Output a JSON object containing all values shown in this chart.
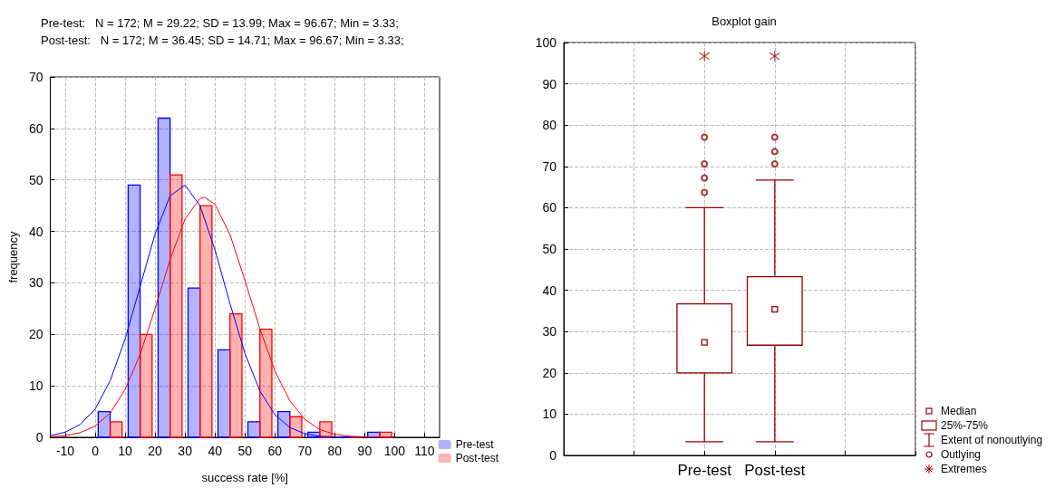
{
  "chart_data": [
    {
      "type": "histogram",
      "title": "Pre-test:   N = 172; M = 29.22; SD = 13.99; Max = 96.67; Min = 3.33;",
      "subtitle": "Post-test:   N = 172; M = 36.45; SD = 14.71; Max = 96.67; Min = 3.33;",
      "xlabel": "success rate [%]",
      "ylabel": "frequency",
      "bins": [
        0,
        10,
        20,
        30,
        40,
        50,
        60,
        70,
        80,
        90,
        100
      ],
      "series": [
        {
          "name": "Pre-test",
          "color": "#0000ff",
          "values": [
            5,
            49,
            62,
            29,
            17,
            3,
            5,
            1,
            0,
            1
          ]
        },
        {
          "name": "Post-test",
          "color": "#ff0000",
          "values": [
            3,
            20,
            51,
            45,
            24,
            21,
            4,
            3,
            0,
            1
          ]
        },
        {
          "type": "line",
          "color": "#0000ff",
          "x": [
            -15,
            -10,
            -5,
            0,
            5,
            10,
            15,
            20,
            25,
            30,
            35,
            40,
            45,
            50,
            55,
            60,
            65,
            70,
            75,
            80,
            90,
            100
          ],
          "values": [
            0.3,
            1,
            2.5,
            5.5,
            11,
            19.1,
            29.3,
            39.5,
            46.9,
            49,
            45,
            36.4,
            26,
            16.3,
            9,
            4.4,
            1.9,
            0.7,
            0.2,
            0.1,
            0,
            0
          ]
        },
        {
          "type": "line",
          "color": "#ff0000",
          "x": [
            -15,
            -10,
            -5,
            0,
            5,
            10,
            15,
            20,
            25,
            30,
            35,
            36.5,
            40,
            45,
            50,
            55,
            60,
            65,
            70,
            75,
            80,
            85,
            90,
            100
          ],
          "values": [
            0.1,
            0.3,
            0.9,
            2.2,
            4.7,
            9.3,
            16.1,
            25,
            34.5,
            42.4,
            46.4,
            46.6,
            45.3,
            39.4,
            30.5,
            21.1,
            12.9,
            7.1,
            3.5,
            1.5,
            0.6,
            0.2,
            0.1,
            0
          ]
        }
      ],
      "xlim": [
        -15,
        115
      ],
      "xticks": [
        -10,
        0,
        10,
        20,
        30,
        40,
        50,
        60,
        70,
        80,
        90,
        100,
        110
      ],
      "ylim": [
        0,
        70
      ],
      "yticks": [
        0,
        10,
        20,
        30,
        40,
        50,
        60,
        70
      ],
      "grid": true,
      "legend": "bottom right"
    },
    {
      "type": "box",
      "title": "Boxplot gain",
      "categories": [
        "Pre-test",
        "Post-test"
      ],
      "series": [
        {
          "color": "#990000",
          "boxes": [
            {
              "low": 3.33,
              "q1": 20,
              "median": 27.4,
              "q3": 36.7,
              "high": 60,
              "outliers": [
                63.7,
                67.2,
                70.6,
                77.1
              ]
            },
            {
              "low": 3.33,
              "q1": 26.7,
              "median": 35.4,
              "q3": 43.3,
              "high": 66.7,
              "outliers": [
                70.6,
                73.6,
                77.1
              ]
            }
          ]
        },
        {
          "type": "scatter",
          "marker": "cross",
          "color": "#990000",
          "x": [
            "Pre-test",
            "Post-test"
          ],
          "values": [
            96.7,
            96.7
          ]
        }
      ],
      "annotations": [
        "Median",
        "25%-75%",
        "Extent of nonoutlying",
        "Outlying",
        "Extremes"
      ],
      "ylim": [
        0,
        100
      ],
      "yticks": [
        0,
        10,
        20,
        30,
        40,
        50,
        60,
        70,
        80,
        90,
        100
      ],
      "grid": true
    }
  ]
}
